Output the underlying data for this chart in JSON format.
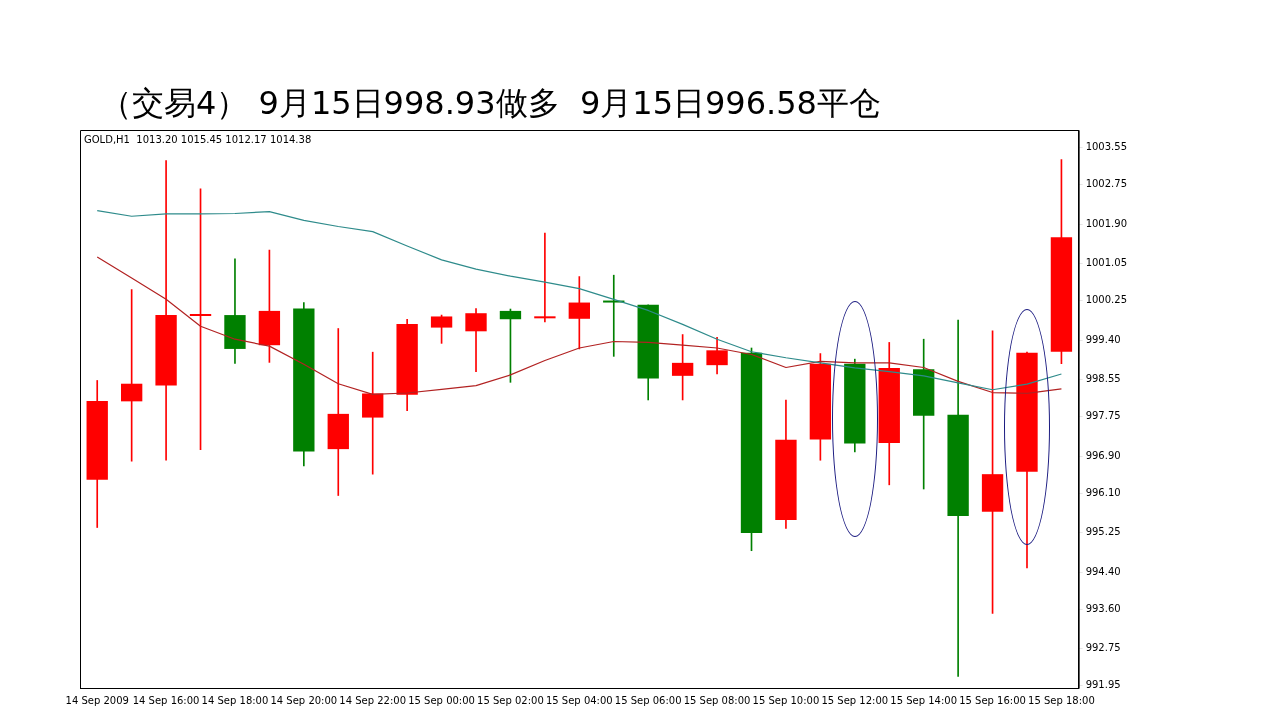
{
  "chart_data": {
    "type": "candlestick",
    "title": "（交易4） 9月15日998.93做多  9月15日996.58平仓",
    "categories": [
      "14 Sep 2009",
      null,
      "14 Sep 16:00",
      null,
      "14 Sep 18:00",
      null,
      "14 Sep 20:00",
      null,
      "14 Sep 22:00",
      null,
      "15 Sep 00:00",
      null,
      "15 Sep 02:00",
      null,
      "15 Sep 04:00",
      null,
      "15 Sep 06:00",
      null,
      "15 Sep 08:00",
      null,
      "15 Sep 10:00",
      null,
      "15 Sep 12:00",
      null,
      "15 Sep 14:00",
      null,
      "15 Sep 16:00",
      null,
      "15 Sep 18:00"
    ],
    "ohlc": [
      [
        996.39,
        998.53,
        995.36,
        998.09
      ],
      [
        998.08,
        1000.49,
        996.79,
        998.46
      ],
      [
        998.42,
        1003.27,
        996.81,
        999.94
      ],
      [
        999.92,
        1002.66,
        997.04,
        999.94
      ],
      [
        999.94,
        1001.15,
        998.9,
        999.21
      ],
      [
        999.29,
        1001.34,
        998.92,
        1000.03
      ],
      [
        1000.08,
        1000.21,
        996.69,
        997.0
      ],
      [
        997.05,
        999.65,
        996.05,
        997.81
      ],
      [
        997.73,
        999.14,
        996.51,
        998.25
      ],
      [
        998.22,
        999.85,
        997.88,
        999.75
      ],
      [
        999.67,
        999.94,
        999.33,
        999.91
      ],
      [
        999.59,
        1000.08,
        998.72,
        999.98
      ],
      [
        1000.03,
        1000.07,
        998.49,
        999.85
      ],
      [
        999.87,
        1001.71,
        999.79,
        999.89
      ],
      [
        999.86,
        1000.77,
        999.21,
        1000.21
      ],
      [
        1000.24,
        1000.8,
        999.05,
        1000.21
      ],
      [
        1000.16,
        1000.16,
        998.11,
        998.57
      ],
      [
        998.63,
        999.52,
        998.11,
        998.91
      ],
      [
        998.86,
        999.46,
        998.67,
        999.18
      ],
      [
        999.13,
        999.23,
        994.86,
        995.24
      ],
      [
        995.52,
        998.11,
        995.34,
        997.25
      ],
      [
        997.26,
        999.11,
        996.81,
        998.89
      ],
      [
        998.89,
        998.99,
        996.99,
        997.17
      ],
      [
        997.18,
        999.35,
        996.28,
        998.8
      ],
      [
        998.77,
        999.42,
        996.19,
        997.77
      ],
      [
        997.79,
        999.83,
        992.15,
        995.61
      ],
      [
        995.7,
        999.6,
        993.51,
        996.51
      ],
      [
        996.56,
        999.14,
        994.49,
        999.13
      ],
      [
        999.15,
        1003.29,
        998.89,
        1001.62
      ]
    ],
    "colors": [
      "#ff0000",
      "#ff0000",
      "#ff0000",
      "#ff0000",
      "#008000",
      "#ff0000",
      "#008000",
      "#ff0000",
      "#ff0000",
      "#ff0000",
      "#ff0000",
      "#ff0000",
      "#008000",
      "#ff0000",
      "#ff0000",
      "#008000",
      "#008000",
      "#ff0000",
      "#ff0000",
      "#008000",
      "#ff0000",
      "#ff0000",
      "#008000",
      "#ff0000",
      "#008000",
      "#008000",
      "#ff0000",
      "#ff0000",
      "#ff0000"
    ],
    "series": [
      {
        "type": "line",
        "color": "#2e8b8b",
        "values": [
          1002.19,
          1002.07,
          1002.12,
          1002.12,
          1002.13,
          1002.17,
          1001.98,
          1001.85,
          1001.74,
          1001.43,
          1001.13,
          1000.93,
          1000.78,
          1000.65,
          1000.51,
          1000.28,
          1000.04,
          999.74,
          999.42,
          999.15,
          999.02,
          998.91,
          998.8,
          998.72,
          998.63,
          998.48,
          998.33,
          998.45,
          998.67
        ]
      },
      {
        "type": "line",
        "color": "#b22222",
        "values": [
          1001.19,
          1000.74,
          1000.28,
          999.7,
          999.42,
          999.27,
          998.88,
          998.46,
          998.23,
          998.26,
          998.34,
          998.42,
          998.65,
          998.96,
          999.23,
          999.37,
          999.35,
          999.29,
          999.23,
          999.09,
          998.81,
          998.94,
          998.91,
          998.91,
          998.81,
          998.51,
          998.27,
          998.25,
          998.35
        ]
      }
    ],
    "ylim": [
      991.9,
      1003.93
    ],
    "yticks": [
      {
        "value": 1003.55,
        "label": "1003.55"
      },
      {
        "value": 1002.75,
        "label": "1002.75"
      },
      {
        "value": 1001.9,
        "label": "1001.90"
      },
      {
        "value": 1001.05,
        "label": "1001.05"
      },
      {
        "value": 1000.25,
        "label": "1000.25"
      },
      {
        "value": 999.4,
        "label": "999.40"
      },
      {
        "value": 998.55,
        "label": "998.55"
      },
      {
        "value": 997.75,
        "label": "997.75"
      },
      {
        "value": 996.9,
        "label": "996.90"
      },
      {
        "value": 996.1,
        "label": "996.10"
      },
      {
        "value": 995.25,
        "label": "995.25"
      },
      {
        "value": 994.4,
        "label": "994.40"
      },
      {
        "value": 993.6,
        "label": "993.60"
      },
      {
        "value": 992.75,
        "label": "992.75"
      },
      {
        "value": 991.95,
        "label": "991.95"
      }
    ],
    "annotations": [
      "GOLD,H1  1013.20 1015.45 1012.17 1014.38"
    ],
    "grid": false,
    "legend": false,
    "marker": "none",
    "line_style": "solid"
  }
}
